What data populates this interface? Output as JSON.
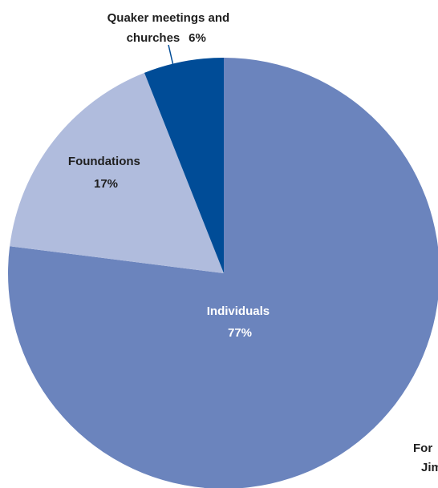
{
  "chart_data": {
    "type": "pie",
    "start_angle_deg": 0,
    "direction": "clockwise",
    "slices": [
      {
        "id": "individuals",
        "label": "Individuals",
        "value": 77,
        "value_label": "77%",
        "color": "#6b84bd",
        "label_color": "#ffffff"
      },
      {
        "id": "foundations",
        "label": "Foundations",
        "value": 17,
        "value_label": "17%",
        "color": "#b0bcdd",
        "label_color": "#1f1f1f"
      },
      {
        "id": "quaker",
        "label_line1": "Quaker meetings and",
        "label_line2": "churches",
        "value": 6,
        "value_label": "6%",
        "color": "#004c97",
        "label_color": "#1f1f1f"
      }
    ],
    "legend": "none"
  },
  "edge_text": {
    "line1": "For",
    "line2": "Jim"
  }
}
